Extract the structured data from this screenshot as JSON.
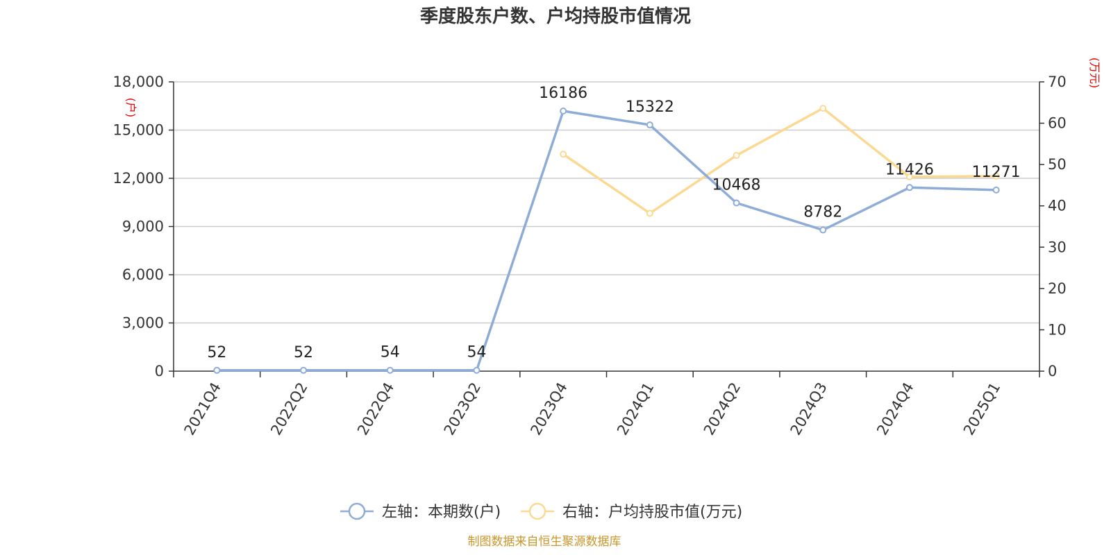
{
  "chart_data": {
    "type": "line",
    "title": "季度股东户数、户均持股市值情况",
    "categories": [
      "2021Q4",
      "2022Q2",
      "2022Q4",
      "2023Q2",
      "2023Q4",
      "2024Q1",
      "2024Q2",
      "2024Q3",
      "2024Q4",
      "2025Q1"
    ],
    "left_axis": {
      "unit": "(户)",
      "ylim": [
        0,
        18000
      ],
      "ticks": [
        "0",
        "3,000",
        "6,000",
        "9,000",
        "12,000",
        "15,000",
        "18,000"
      ]
    },
    "right_axis": {
      "unit": "(万元)",
      "ylim": [
        0,
        70
      ],
      "ticks": [
        "0",
        "10",
        "20",
        "30",
        "40",
        "50",
        "60",
        "70"
      ]
    },
    "series": [
      {
        "name": "左轴：本期数(户)",
        "axis": "left",
        "color": "#8eacd8",
        "values": [
          52,
          52,
          54,
          54,
          16186,
          15322,
          10468,
          8782,
          11426,
          11271
        ],
        "labels": [
          "52",
          "52",
          "54",
          "54",
          "16186",
          "15322",
          "10468",
          "8782",
          "11426",
          "11271"
        ]
      },
      {
        "name": "右轴：户均持股市值(万元)",
        "axis": "right",
        "color": "#fbd993",
        "values": [
          null,
          null,
          null,
          null,
          52.5,
          38.2,
          52.2,
          63.6,
          47.0,
          47.2
        ]
      }
    ],
    "grid": true,
    "legend_position": "bottom"
  },
  "source": "制图数据来自恒生聚源数据库"
}
